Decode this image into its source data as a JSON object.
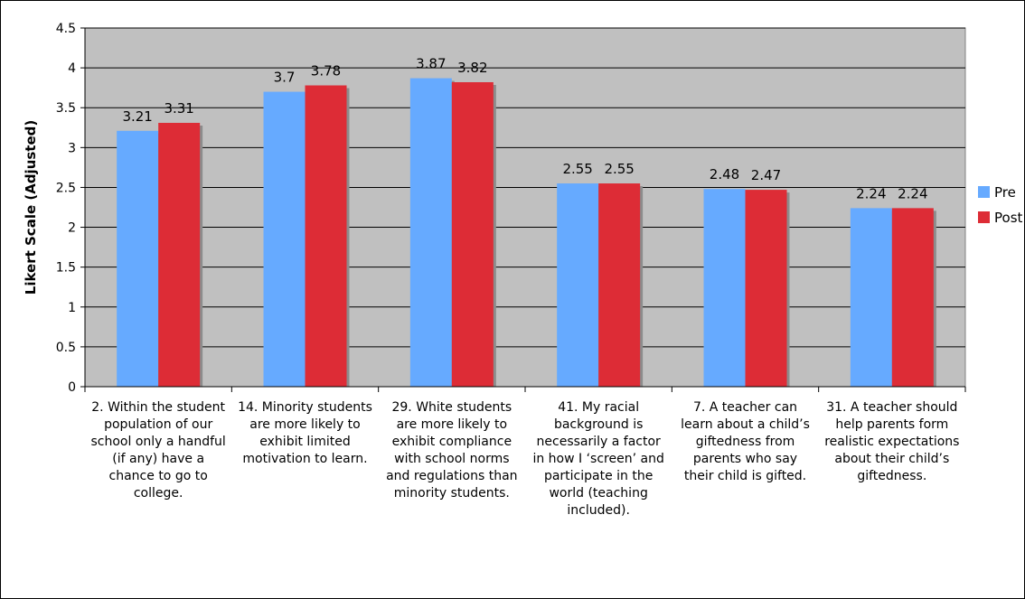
{
  "chart_data": {
    "type": "bar",
    "title": "",
    "xlabel": "",
    "ylabel": "Likert Scale (Adjusted)",
    "ylim": [
      0,
      4.5
    ],
    "yticks": [
      "0",
      "0.5",
      "1",
      "1.5",
      "2",
      "2.5",
      "3",
      "3.5",
      "4",
      "4.5"
    ],
    "grid": "horizontal",
    "legend_position": "right",
    "categories": [
      "2. Within the student population of our school only a handful (if any) have a chance to go to college.",
      "14. Minority students are more likely to exhibit limited motivation to learn.",
      "29. White students are more likely to exhibit compliance with school norms and regulations than minority students.",
      "41. My racial background is necessarily a factor in how I ‘screen’ and participate in the world (teaching included).",
      "7. A teacher can learn about a child’s giftedness from parents who say their child is gifted.",
      "31. A teacher should help parents form realistic expectations about their child’s giftedness."
    ],
    "series": [
      {
        "name": "Pre",
        "color": "#66aaff",
        "values": [
          3.21,
          3.7,
          3.87,
          2.55,
          2.48,
          2.24
        ]
      },
      {
        "name": "Post",
        "color": "#dd2c36",
        "values": [
          3.31,
          3.78,
          3.82,
          2.55,
          2.47,
          2.24
        ]
      }
    ],
    "plot_background": "#c0c0c0"
  }
}
